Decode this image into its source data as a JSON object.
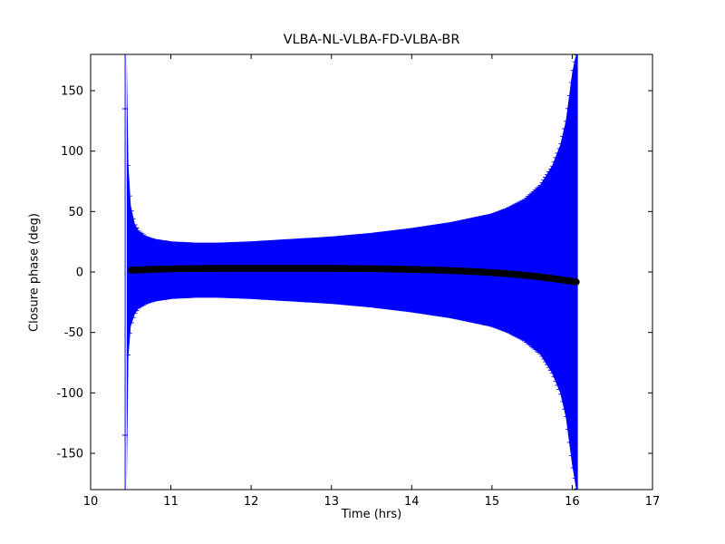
{
  "figure": {
    "background": "#ffffff"
  },
  "chart_data": {
    "type": "errorbar",
    "title": "VLBA-NL-VLBA-FD-VLBA-BR",
    "xlabel": "Time (hrs)",
    "ylabel": "Closure phase (deg)",
    "xlim": [
      10,
      17
    ],
    "ylim": [
      -180,
      180
    ],
    "xticks": [
      10,
      11,
      12,
      13,
      14,
      15,
      16,
      17
    ],
    "yticks": [
      -150,
      -100,
      -50,
      0,
      50,
      100,
      150
    ],
    "grid": false,
    "legend": "none",
    "envelope_color": "#0000ff",
    "series_color": "#000000",
    "envelope": {
      "comment": "blue error-bar envelope: upper/lower closure-phase bounds (deg) vs time (hrs)",
      "times": [
        10.45,
        10.47,
        10.5,
        10.55,
        10.6,
        10.7,
        10.8,
        11.0,
        11.3,
        11.6,
        12.0,
        12.5,
        13.0,
        13.5,
        14.0,
        14.5,
        15.0,
        15.2,
        15.4,
        15.6,
        15.75,
        15.85,
        15.92,
        15.97,
        16.0,
        16.03,
        16.05,
        16.07
      ],
      "upper": [
        180,
        90,
        55,
        40,
        34,
        29,
        27,
        25,
        24,
        24,
        25,
        27,
        29,
        32,
        36,
        41,
        48,
        53,
        60,
        72,
        88,
        105,
        125,
        150,
        165,
        175,
        180,
        180
      ],
      "lower": [
        -180,
        -70,
        -45,
        -35,
        -30,
        -26,
        -24,
        -22,
        -21,
        -21,
        -22,
        -24,
        -26,
        -29,
        -33,
        -38,
        -45,
        -50,
        -57,
        -68,
        -84,
        -100,
        -120,
        -145,
        -160,
        -172,
        -180,
        -180
      ]
    },
    "series": {
      "name": "closure-phase",
      "times": [
        10.5,
        10.7,
        10.9,
        11.1,
        11.4,
        11.7,
        12.0,
        12.3,
        12.6,
        12.9,
        13.2,
        13.5,
        13.8,
        14.1,
        14.4,
        14.7,
        15.0,
        15.3,
        15.6,
        15.8,
        15.95,
        16.05
      ],
      "values": [
        1.5,
        2.0,
        2.4,
        2.7,
        2.9,
        3.0,
        3.0,
        3.0,
        3.0,
        3.0,
        2.9,
        2.7,
        2.4,
        2.0,
        1.4,
        0.6,
        -0.5,
        -2.0,
        -4.0,
        -5.8,
        -7.2,
        -8.2
      ]
    },
    "spike": {
      "time": 10.43,
      "caps": [
        135,
        -135
      ]
    }
  }
}
